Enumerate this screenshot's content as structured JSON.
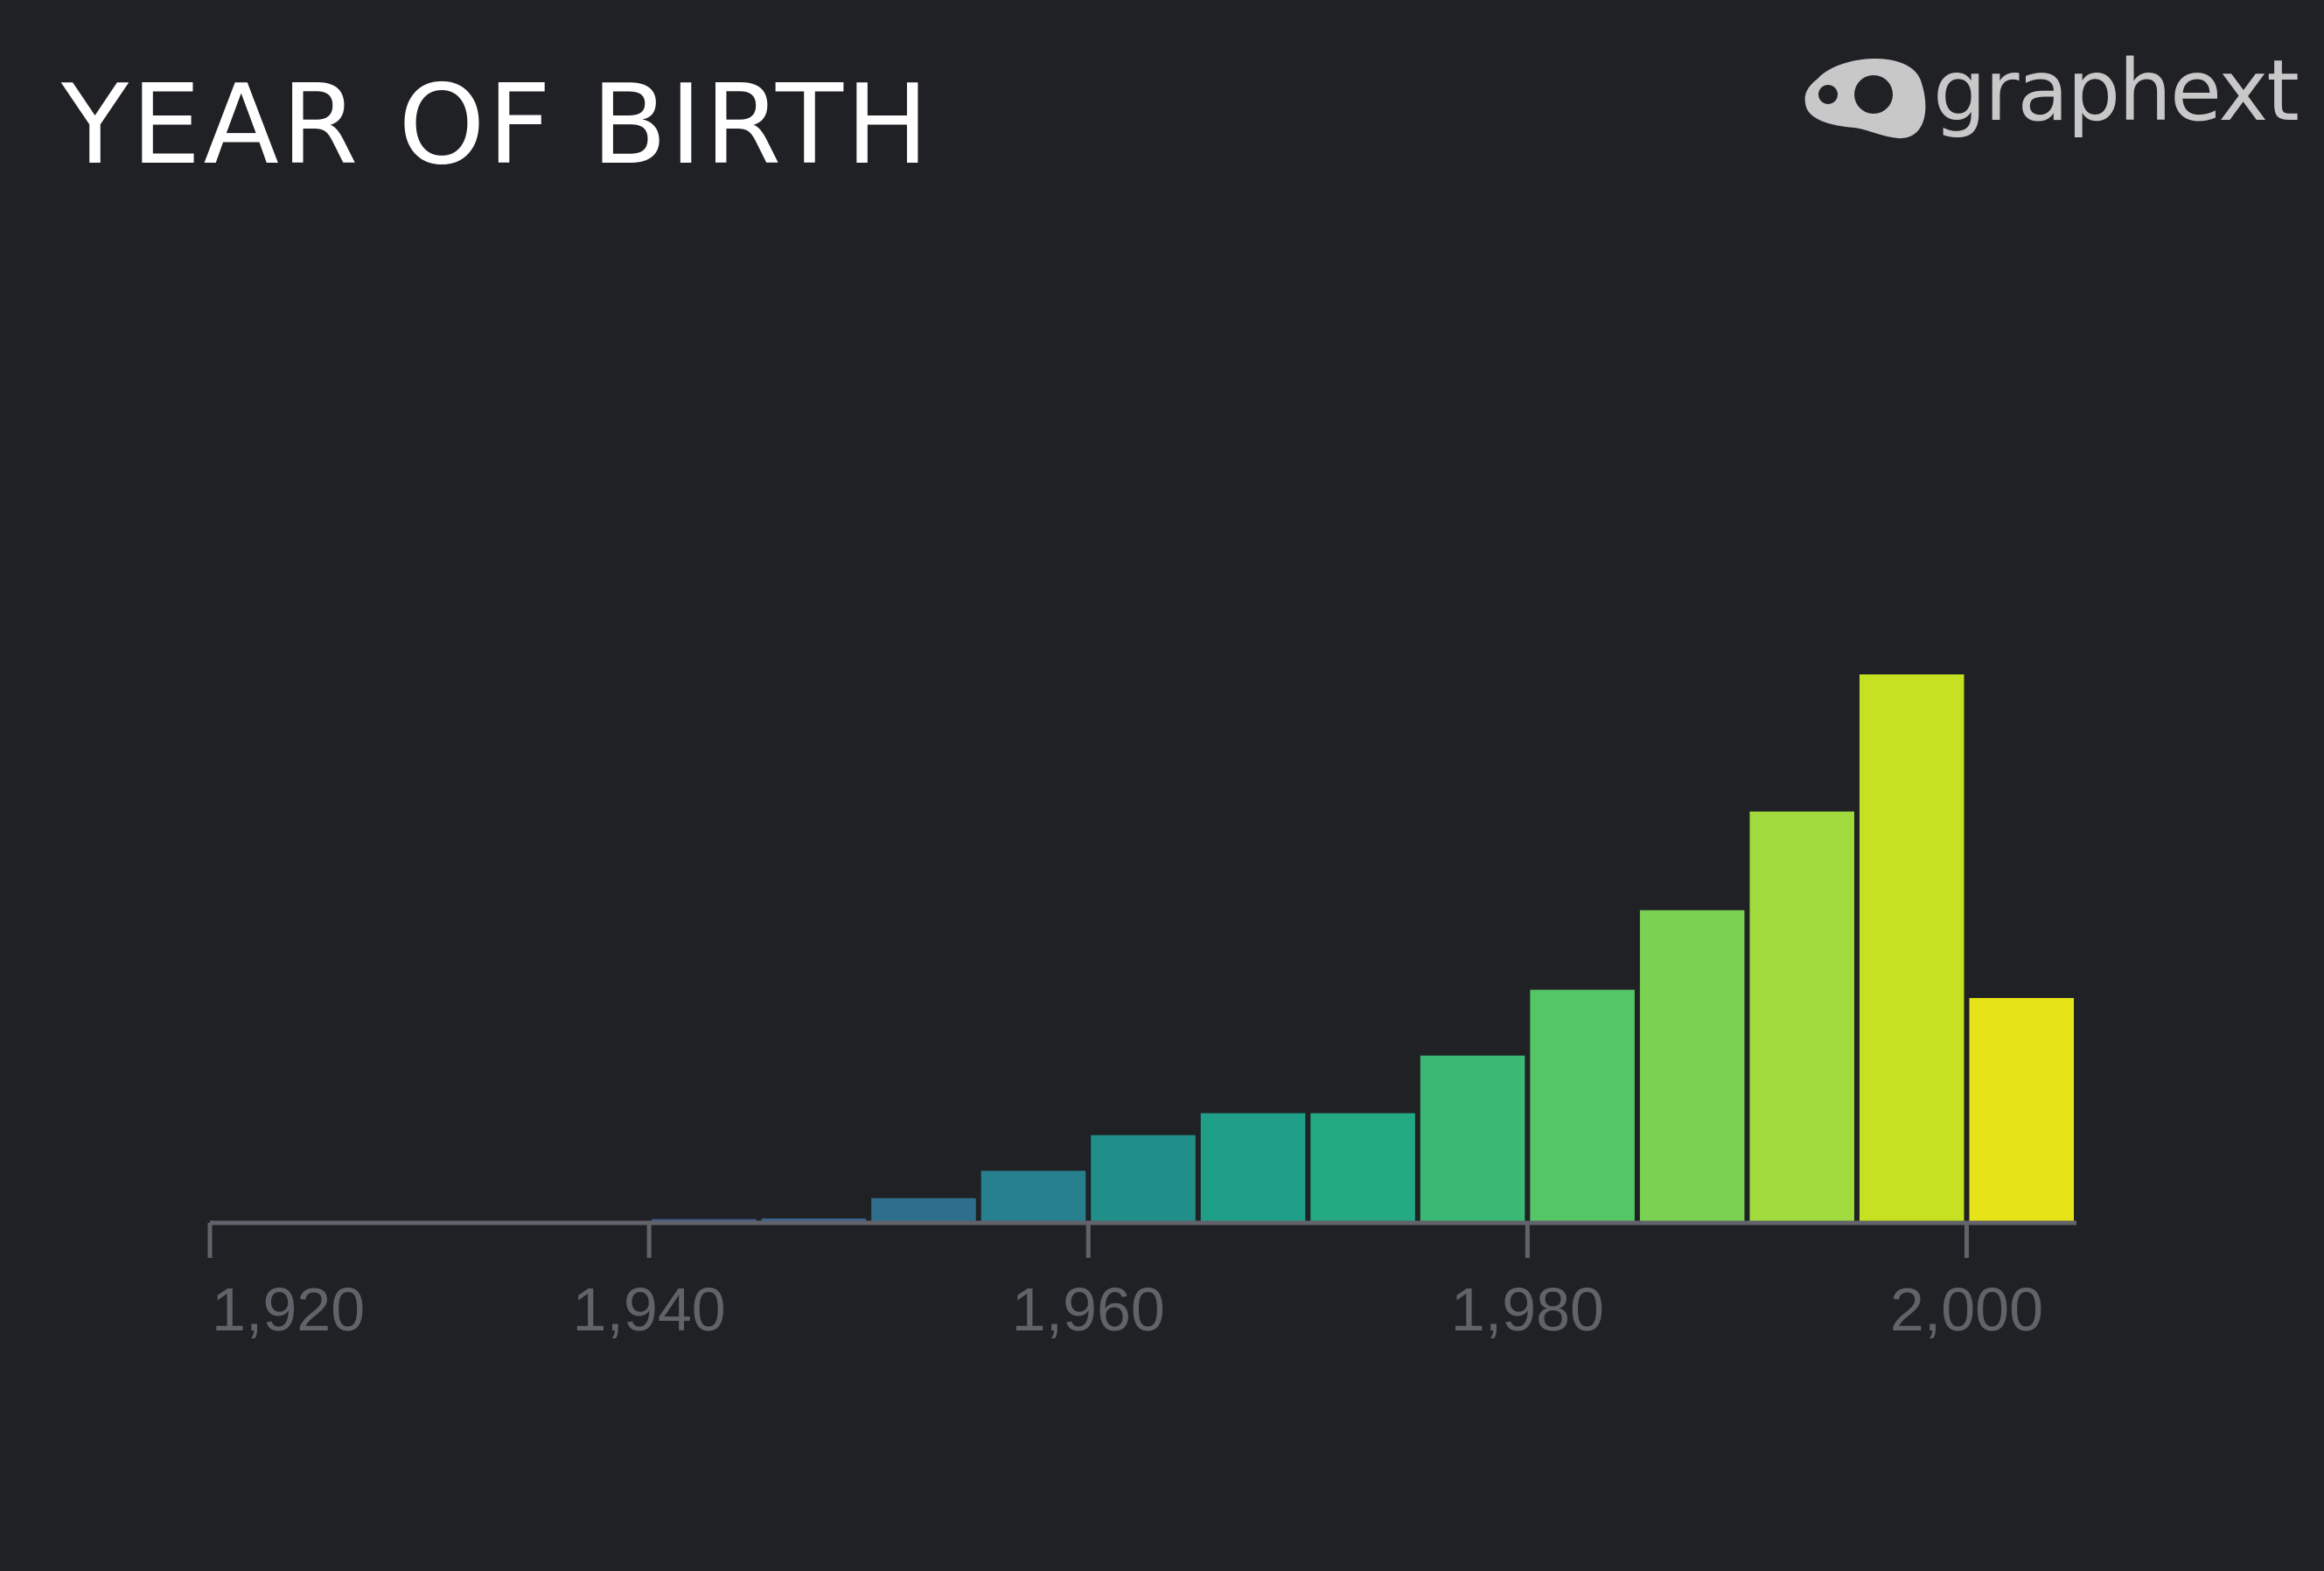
{
  "page": {
    "title": "YEAR OF BIRTH",
    "logo_text": "graphext",
    "background": "#202125"
  },
  "chart_data": {
    "type": "bar",
    "title": "YEAR OF BIRTH",
    "xlabel": "",
    "ylabel": "",
    "x_range": [
      1920,
      2005
    ],
    "x_ticks": [
      1920,
      1940,
      1960,
      1980,
      2000
    ],
    "x_tick_labels": [
      "1,920",
      "1,940",
      "1,960",
      "1,980",
      "2,000"
    ],
    "grid": false,
    "axis_color": "#62626a",
    "bins": [
      {
        "start": 1940,
        "end": 1945,
        "value": 0.7,
        "color": "#3e5891"
      },
      {
        "start": 1945,
        "end": 1950,
        "value": 0.8,
        "color": "#39628f"
      },
      {
        "start": 1950,
        "end": 1955,
        "value": 4.5,
        "color": "#2e6f8e"
      },
      {
        "start": 1955,
        "end": 1960,
        "value": 9.5,
        "color": "#26808d"
      },
      {
        "start": 1960,
        "end": 1965,
        "value": 16.0,
        "color": "#208f8a"
      },
      {
        "start": 1965,
        "end": 1970,
        "value": 20.0,
        "color": "#1f9e88"
      },
      {
        "start": 1970,
        "end": 1975,
        "value": 20.0,
        "color": "#23aa82"
      },
      {
        "start": 1975,
        "end": 1980,
        "value": 30.5,
        "color": "#3bb874"
      },
      {
        "start": 1980,
        "end": 1985,
        "value": 42.5,
        "color": "#55c666"
      },
      {
        "start": 1985,
        "end": 1990,
        "value": 57.0,
        "color": "#7ad152"
      },
      {
        "start": 1990,
        "end": 1995,
        "value": 75.0,
        "color": "#a1da3c"
      },
      {
        "start": 1995,
        "end": 2000,
        "value": 100.0,
        "color": "#c5e122"
      },
      {
        "start": 2000,
        "end": 2005,
        "value": 41.0,
        "color": "#e6e419"
      }
    ],
    "y_max": 100
  }
}
